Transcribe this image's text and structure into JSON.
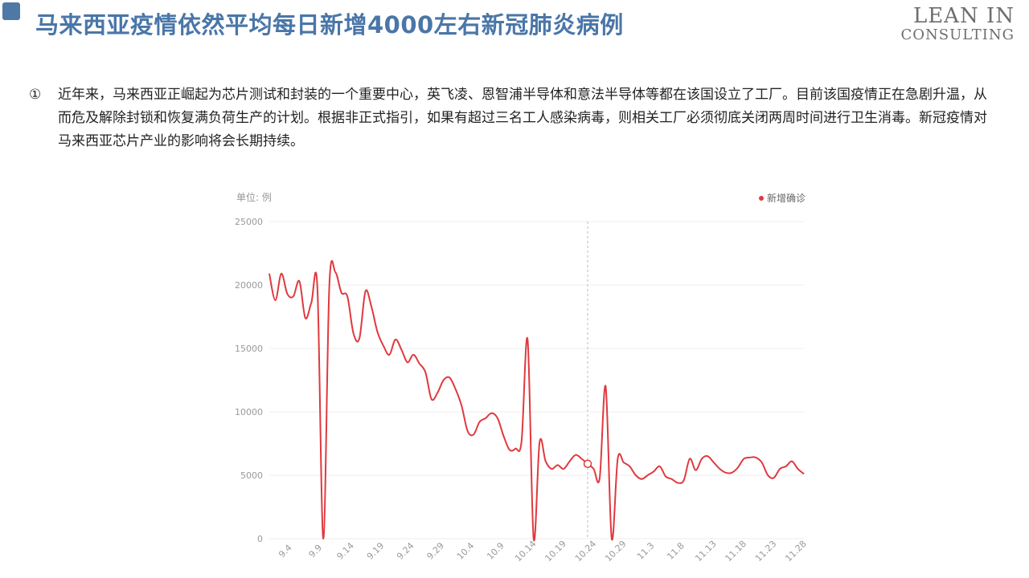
{
  "header": {
    "title": "马来西亚疫情依然平均每日新增4000左右新冠肺炎病例",
    "logo_line1": "LEAN IN",
    "logo_line2": "CONSULTING"
  },
  "bullet": {
    "marker": "①",
    "text": "近年来，马来西亚正崛起为芯片测试和封装的一个重要中心，英飞凌、恩智浦半导体和意法半导体等都在该国设立了工厂。目前该国疫情正在急剧升温，从而危及解除封锁和恢复满负荷生产的计划。根据非正式指引，如果有超过三名工人感染病毒，则相关工厂必须彻底关闭两周时间进行卫生消毒。新冠疫情对马来西亚芯片产业的影响将会长期持续。"
  },
  "colors": {
    "accent": "#4a76a8",
    "series": "#e0393e",
    "grid": "#eeeeee",
    "axis_text": "#999999"
  },
  "chart_data": {
    "type": "line",
    "unit_label": "单位: 例",
    "legend_position": "top-right",
    "grid": true,
    "ylim": [
      0,
      25000
    ],
    "y_ticks": [
      25000,
      20000,
      15000,
      10000,
      5000,
      0
    ],
    "x_tick_labels": [
      "9.4",
      "9.9",
      "9.14",
      "9.19",
      "9.24",
      "9.29",
      "10.4",
      "10.9",
      "10.14",
      "10.19",
      "10.24",
      "10.29",
      "11.3",
      "11.8",
      "11.13",
      "11.18",
      "11.23",
      "11.28"
    ],
    "hover_date": "10.24",
    "series": [
      {
        "name": "新增确诊",
        "x": [
          "9.1",
          "9.2",
          "9.3",
          "9.4",
          "9.5",
          "9.6",
          "9.7",
          "9.8",
          "9.9",
          "9.10",
          "9.11",
          "9.12",
          "9.13",
          "9.14",
          "9.15",
          "9.16",
          "9.17",
          "9.18",
          "9.19",
          "9.20",
          "9.21",
          "9.22",
          "9.23",
          "9.24",
          "9.25",
          "9.26",
          "9.27",
          "9.28",
          "9.29",
          "9.30",
          "10.1",
          "10.2",
          "10.3",
          "10.4",
          "10.5",
          "10.6",
          "10.7",
          "10.8",
          "10.9",
          "10.10",
          "10.11",
          "10.12",
          "10.13",
          "10.14",
          "10.15",
          "10.16",
          "10.17",
          "10.18",
          "10.19",
          "10.20",
          "10.21",
          "10.22",
          "10.23",
          "10.24",
          "10.25",
          "10.26",
          "10.27",
          "10.28",
          "10.29",
          "10.30",
          "10.31",
          "11.1",
          "11.2",
          "11.3",
          "11.4",
          "11.5",
          "11.6",
          "11.7",
          "11.8",
          "11.9",
          "11.10",
          "11.11",
          "11.12",
          "11.13",
          "11.14",
          "11.15",
          "11.16",
          "11.17",
          "11.18",
          "11.19",
          "11.20",
          "11.21",
          "11.22",
          "11.23",
          "11.24",
          "11.25",
          "11.26",
          "11.27",
          "11.28",
          "11.29"
        ],
        "values": [
          20900,
          18800,
          20900,
          19300,
          19100,
          20300,
          17400,
          18600,
          19800,
          0,
          20000,
          21000,
          19400,
          19100,
          16200,
          15800,
          19500,
          18300,
          16300,
          15200,
          14500,
          15700,
          14900,
          13900,
          14500,
          13800,
          13100,
          11000,
          11500,
          12500,
          12700,
          11800,
          10500,
          8500,
          8200,
          9200,
          9500,
          9900,
          9500,
          8100,
          7000,
          7100,
          7700,
          15700,
          0,
          7600,
          6100,
          5500,
          5800,
          5500,
          6100,
          6600,
          6300,
          5900,
          5500,
          4800,
          12000,
          0,
          6300,
          6000,
          5700,
          5000,
          4700,
          5000,
          5300,
          5700,
          4900,
          4700,
          4400,
          4600,
          6300,
          5400,
          6300,
          6500,
          6000,
          5500,
          5200,
          5200,
          5600,
          6300,
          6400,
          6400,
          6000,
          5000,
          4800,
          5500,
          5700,
          6100,
          5500,
          5100
        ]
      }
    ]
  }
}
